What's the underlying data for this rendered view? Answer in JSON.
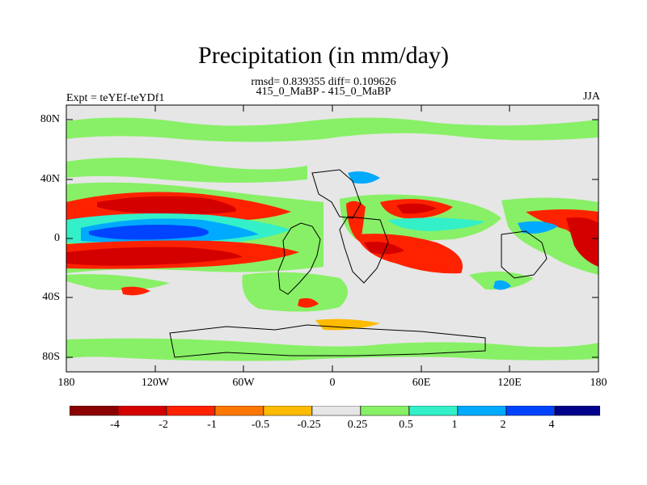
{
  "title": "Precipitation (in mm/day)",
  "stats": "rmsd= 0.839355 diff= 0.109626",
  "experiments": "415_0_MaBP - 415_0_MaBP",
  "expt_label": "Expt = teYEf-teYDf1",
  "season": "JJA",
  "lat_labels": [
    "80N",
    "40N",
    "0",
    "40S",
    "80S"
  ],
  "lon_labels": [
    "180",
    "120W",
    "60W",
    "0",
    "60E",
    "120E",
    "180"
  ],
  "colorbar": {
    "labels": [
      "-4",
      "-2",
      "-1",
      "-0.5",
      "-0.25",
      "0.25",
      "0.5",
      "1",
      "2",
      "4"
    ],
    "colors": [
      "#8b0000",
      "#d40000",
      "#ff2200",
      "#ff7700",
      "#ffbb00",
      "#e6e6e6",
      "#88f066",
      "#33f0c8",
      "#00aaff",
      "#0044ff",
      "#00008b"
    ]
  },
  "map_background": "#e6e6e6"
}
